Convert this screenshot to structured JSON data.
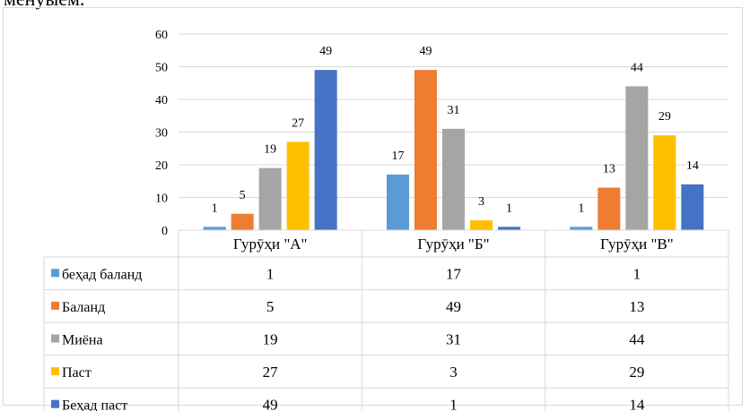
{
  "page": {
    "top_text": "менуыем."
  },
  "chart_data": {
    "type": "bar",
    "title": "",
    "xlabel": "",
    "ylabel": "",
    "ylim": [
      0,
      60
    ],
    "yticks": [
      0,
      10,
      20,
      30,
      40,
      50,
      60
    ],
    "grid": true,
    "legend": "data-table-left",
    "categories": [
      "Гурӯҳи \"А\"",
      "Гурӯҳи \"Б\"",
      "Гурӯҳи \"В\""
    ],
    "series": [
      {
        "name": "беҳад баланд",
        "color": "#5B9BD5",
        "values": [
          1,
          17,
          1
        ]
      },
      {
        "name": "Баланд",
        "color": "#ED7D31",
        "values": [
          5,
          49,
          13
        ]
      },
      {
        "name": "Миёна",
        "color": "#A5A5A5",
        "values": [
          19,
          31,
          44
        ]
      },
      {
        "name": "Паст",
        "color": "#FFC000",
        "values": [
          27,
          3,
          29
        ]
      },
      {
        "name": "Беҳад паст",
        "color": "#4472C4",
        "values": [
          49,
          1,
          14
        ]
      }
    ]
  }
}
